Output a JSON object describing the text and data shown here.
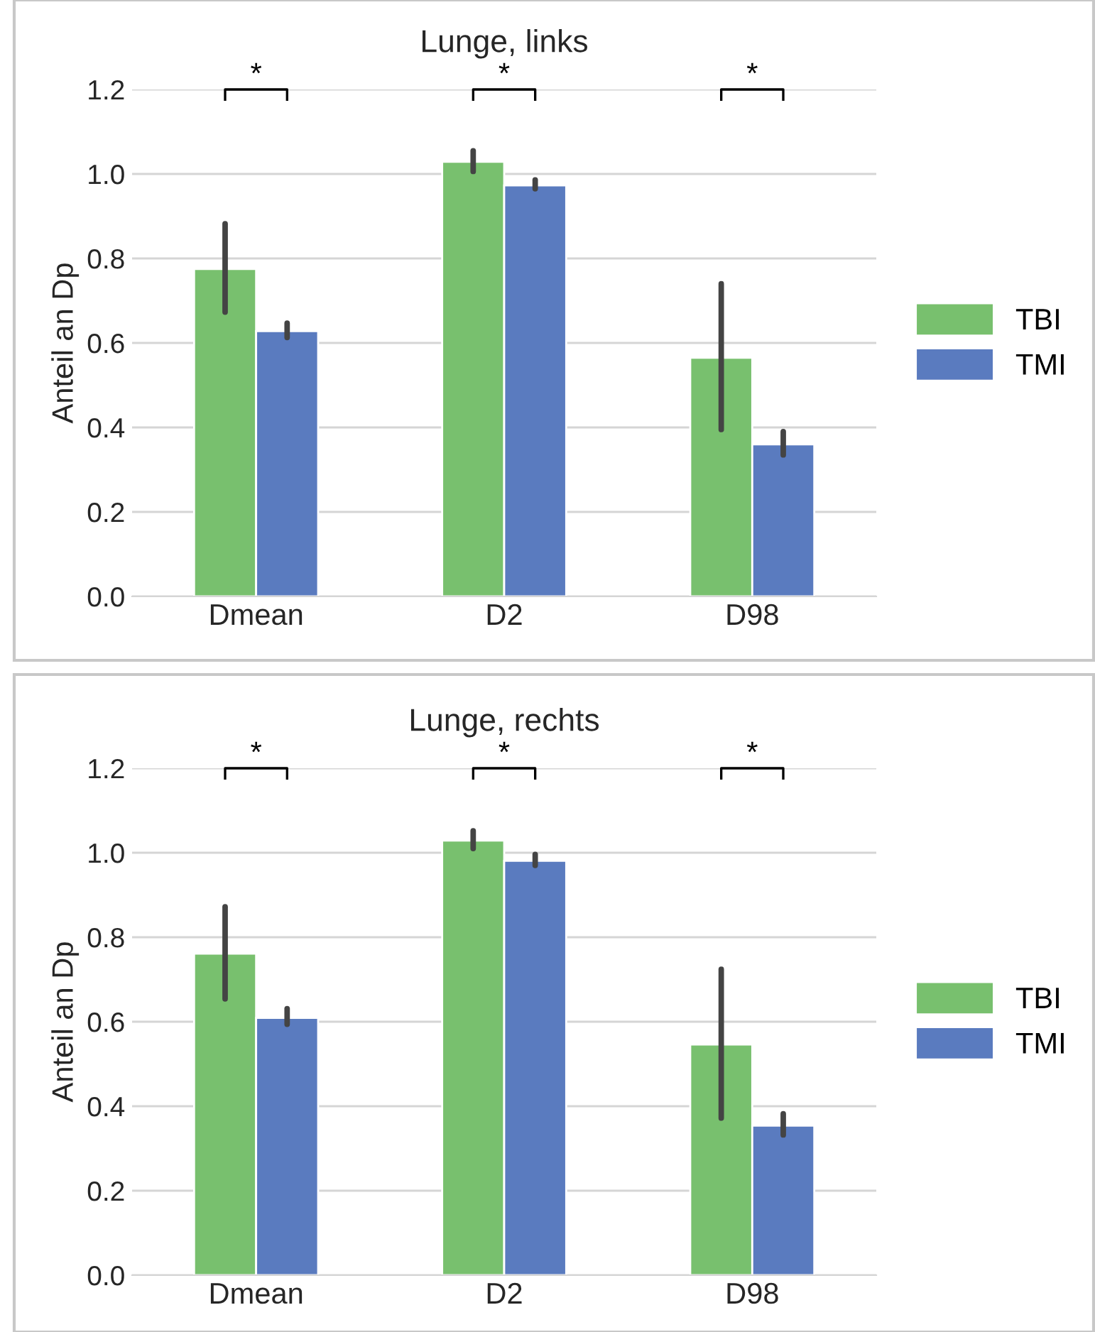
{
  "chart_data": [
    {
      "type": "bar",
      "title": "Lunge, links",
      "ylabel": "Anteil an Dp",
      "categories": [
        "Dmean",
        "D2",
        "D98"
      ],
      "ylim": [
        0,
        1.2
      ],
      "yticks": [
        {
          "value": 0,
          "label": "0.0"
        },
        {
          "value": 0.2,
          "label": "0.2"
        },
        {
          "value": 0.4,
          "label": "0.4"
        },
        {
          "value": 0.6,
          "label": "0.6"
        },
        {
          "value": 0.8,
          "label": "0.8"
        },
        {
          "value": 1.0,
          "label": "1.0"
        },
        {
          "value": 1.2,
          "label": "1.2"
        }
      ],
      "grid": "y",
      "legend": "right",
      "annotations": [
        "*",
        "*",
        "*"
      ],
      "series": [
        {
          "name": "TBI",
          "color": "#78c06e",
          "values": [
            0.775,
            1.029,
            0.565
          ],
          "errors": [
            [
              0.673,
              0.882
            ],
            [
              1.006,
              1.055
            ],
            [
              0.395,
              0.74
            ]
          ]
        },
        {
          "name": "TMI",
          "color": "#5a7bbf",
          "values": [
            0.628,
            0.973,
            0.36
          ],
          "errors": [
            [
              0.613,
              0.647
            ],
            [
              0.965,
              0.986
            ],
            [
              0.335,
              0.39
            ]
          ]
        }
      ]
    },
    {
      "type": "bar",
      "title": "Lunge, rechts",
      "ylabel": "Anteil an Dp",
      "categories": [
        "Dmean",
        "D2",
        "D98"
      ],
      "ylim": [
        0,
        1.2
      ],
      "yticks": [
        {
          "value": 0,
          "label": "0.0"
        },
        {
          "value": 0.2,
          "label": "0.2"
        },
        {
          "value": 0.4,
          "label": "0.4"
        },
        {
          "value": 0.6,
          "label": "0.6"
        },
        {
          "value": 0.8,
          "label": "0.8"
        },
        {
          "value": 1.0,
          "label": "1.0"
        },
        {
          "value": 1.2,
          "label": "1.2"
        }
      ],
      "grid": "y",
      "legend": "right",
      "annotations": [
        "*",
        "*",
        "*"
      ],
      "series": [
        {
          "name": "TBI",
          "color": "#78c06e",
          "values": [
            0.761,
            1.029,
            0.546
          ],
          "errors": [
            [
              0.654,
              0.872
            ],
            [
              1.01,
              1.052
            ],
            [
              0.372,
              0.724
            ]
          ]
        },
        {
          "name": "TMI",
          "color": "#5a7bbf",
          "values": [
            0.609,
            0.981,
            0.354
          ],
          "errors": [
            [
              0.594,
              0.631
            ],
            [
              0.97,
              0.996
            ],
            [
              0.332,
              0.382
            ]
          ]
        }
      ]
    }
  ]
}
